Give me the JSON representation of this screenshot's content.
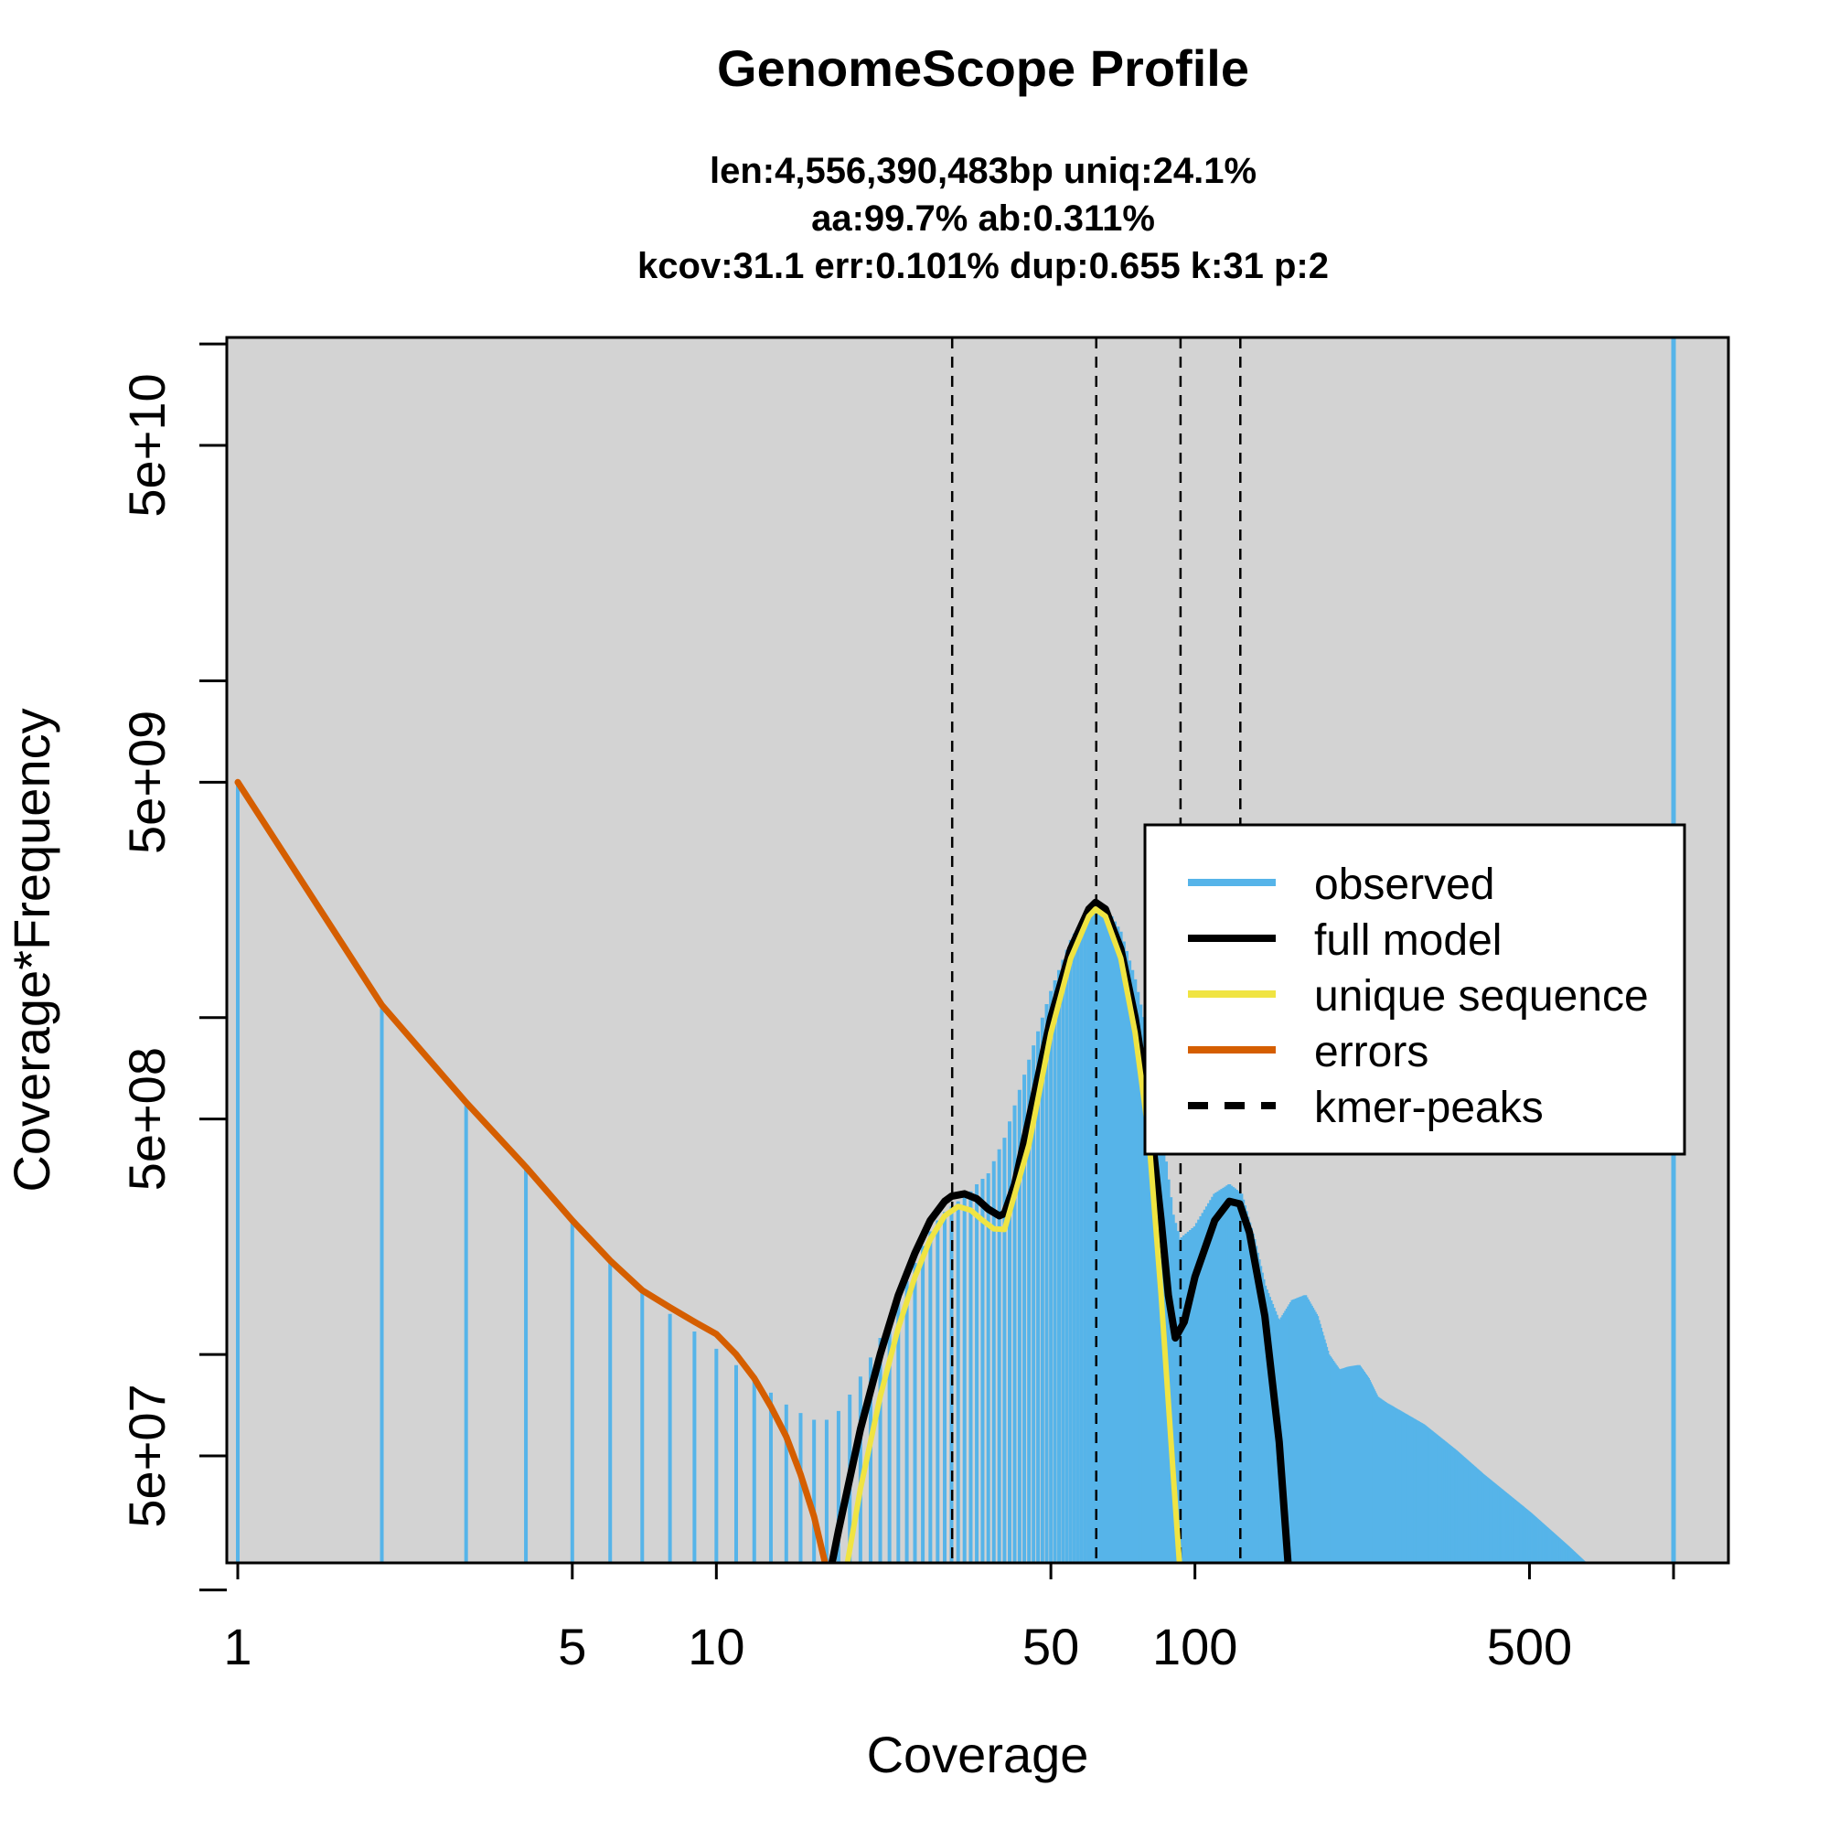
{
  "chart_data": {
    "type": "line",
    "title": "GenomeScope Profile",
    "subtitle_lines": [
      "len:4,556,390,483bp uniq:24.1%",
      "aa:99.7% ab:0.311%",
      "kcov:31.1 err:0.101%  dup:0.655  k:31 p:2"
    ],
    "xlabel": "Coverage",
    "ylabel": "Coverage*Frequency",
    "x_scale": "log",
    "y_scale": "log",
    "xlim": [
      0.8,
      1000
    ],
    "ylim": [
      8000000,
      200000000000
    ],
    "x_ticks": [
      {
        "value": 1,
        "label": "1"
      },
      {
        "value": 5,
        "label": "5"
      },
      {
        "value": 10,
        "label": "10"
      },
      {
        "value": 50,
        "label": "50"
      },
      {
        "value": 100,
        "label": "100"
      },
      {
        "value": 500,
        "label": "500"
      },
      {
        "value": 1000,
        "label": ""
      }
    ],
    "y_ticks": [
      {
        "value": 20000000,
        "label": ""
      },
      {
        "value": 50000000,
        "label": "5e+07"
      },
      {
        "value": 100000000,
        "label": ""
      },
      {
        "value": 500000000,
        "label": "5e+08"
      },
      {
        "value": 1000000000,
        "label": ""
      },
      {
        "value": 5000000000,
        "label": "5e+09"
      },
      {
        "value": 10000000000,
        "label": ""
      },
      {
        "value": 50000000000,
        "label": "5e+10"
      },
      {
        "value": 100000000000,
        "label": ""
      }
    ],
    "background": "#d3d3d3",
    "grid": false,
    "legend_position": "right",
    "legend": [
      {
        "label": "observed",
        "color": "#56b4e9",
        "style": "solid"
      },
      {
        "label": "full model",
        "color": "#000000",
        "style": "solid"
      },
      {
        "label": "unique sequence",
        "color": "#f0e442",
        "style": "solid"
      },
      {
        "label": "errors",
        "color": "#d55e00",
        "style": "solid"
      },
      {
        "label": "kmer-peaks",
        "color": "#000000",
        "style": "dashed"
      }
    ],
    "kmer_peaks": [
      31.1,
      62.2,
      93.3,
      124.4
    ],
    "series": [
      {
        "name": "observed",
        "kind": "histogram",
        "color": "#56b4e9",
        "points": [
          [
            1,
            5000000000
          ],
          [
            2,
            1090000000
          ],
          [
            3,
            560000000
          ],
          [
            4,
            360000000
          ],
          [
            5,
            250000000
          ],
          [
            6,
            190000000
          ],
          [
            7,
            155000000
          ],
          [
            8,
            132000000
          ],
          [
            9,
            117000000
          ],
          [
            10,
            104000000
          ],
          [
            11,
            93000000
          ],
          [
            12,
            84000000
          ],
          [
            13,
            77000000
          ],
          [
            14,
            71000000
          ],
          [
            15,
            67000000
          ],
          [
            16,
            64000000
          ],
          [
            17,
            64000000
          ],
          [
            18,
            68000000
          ],
          [
            19,
            76000000
          ],
          [
            20,
            86000000
          ],
          [
            21,
            98000000
          ],
          [
            22,
            112000000
          ],
          [
            23,
            127000000
          ],
          [
            24,
            145000000
          ],
          [
            25,
            165000000
          ],
          [
            26,
            187000000
          ],
          [
            27,
            210000000
          ],
          [
            28,
            232000000
          ],
          [
            29,
            250000000
          ],
          [
            30,
            265000000
          ],
          [
            31,
            275000000
          ],
          [
            32,
            285000000
          ],
          [
            33,
            295000000
          ],
          [
            34,
            305000000
          ],
          [
            35,
            320000000
          ],
          [
            37,
            345000000
          ],
          [
            40,
            440000000
          ],
          [
            45,
            750000000
          ],
          [
            50,
            1200000000
          ],
          [
            55,
            1700000000
          ],
          [
            60,
            2100000000
          ],
          [
            62,
            2200000000
          ],
          [
            65,
            2150000000
          ],
          [
            70,
            1800000000
          ],
          [
            75,
            1300000000
          ],
          [
            80,
            850000000
          ],
          [
            85,
            480000000
          ],
          [
            90,
            260000000
          ],
          [
            93,
            220000000
          ],
          [
            100,
            240000000
          ],
          [
            110,
            300000000
          ],
          [
            118,
            320000000
          ],
          [
            125,
            300000000
          ],
          [
            133,
            220000000
          ],
          [
            140,
            160000000
          ],
          [
            150,
            125000000
          ],
          [
            160,
            145000000
          ],
          [
            170,
            150000000
          ],
          [
            180,
            130000000
          ],
          [
            190,
            100000000
          ],
          [
            200,
            90000000
          ],
          [
            210,
            92000000
          ],
          [
            220,
            93000000
          ],
          [
            230,
            85000000
          ],
          [
            240,
            75000000
          ],
          [
            250,
            72000000
          ],
          [
            300,
            62000000
          ],
          [
            350,
            52000000
          ],
          [
            400,
            44000000
          ],
          [
            500,
            34000000
          ],
          [
            600,
            27000000
          ],
          [
            700,
            22000000
          ],
          [
            800,
            18000000
          ],
          [
            900,
            15000000
          ],
          [
            999,
            13000000
          ]
        ],
        "final_bin": [
          1000,
          150000000000
        ]
      },
      {
        "name": "full model",
        "kind": "line",
        "color": "#000000",
        "points": [
          [
            15.1,
            8000000
          ],
          [
            16,
            13000000
          ],
          [
            18,
            30000000
          ],
          [
            20,
            60000000
          ],
          [
            22,
            100000000
          ],
          [
            24,
            150000000
          ],
          [
            26,
            200000000
          ],
          [
            28,
            250000000
          ],
          [
            30,
            285000000
          ],
          [
            31,
            295000000
          ],
          [
            33,
            300000000
          ],
          [
            35,
            290000000
          ],
          [
            37,
            270000000
          ],
          [
            39,
            258000000
          ],
          [
            40,
            262000000
          ],
          [
            42,
            320000000
          ],
          [
            45,
            500000000
          ],
          [
            50,
            1000000000
          ],
          [
            55,
            1600000000
          ],
          [
            60,
            2100000000
          ],
          [
            62,
            2200000000
          ],
          [
            65,
            2100000000
          ],
          [
            70,
            1600000000
          ],
          [
            75,
            1000000000
          ],
          [
            80,
            550000000
          ],
          [
            85,
            250000000
          ],
          [
            88,
            150000000
          ],
          [
            91,
            112000000
          ],
          [
            95,
            125000000
          ],
          [
            100,
            170000000
          ],
          [
            110,
            250000000
          ],
          [
            118,
            285000000
          ],
          [
            124,
            280000000
          ],
          [
            130,
            230000000
          ],
          [
            140,
            130000000
          ],
          [
            150,
            55000000
          ],
          [
            158,
            20000000
          ],
          [
            165,
            8000000
          ]
        ]
      },
      {
        "name": "unique sequence",
        "kind": "line",
        "color": "#f0e442",
        "points": [
          [
            17,
            8000000
          ],
          [
            18,
            17000000
          ],
          [
            20,
            40000000
          ],
          [
            22,
            75000000
          ],
          [
            24,
            120000000
          ],
          [
            26,
            170000000
          ],
          [
            28,
            220000000
          ],
          [
            30,
            258000000
          ],
          [
            32,
            275000000
          ],
          [
            34,
            268000000
          ],
          [
            36,
            250000000
          ],
          [
            38,
            236000000
          ],
          [
            40,
            235000000
          ],
          [
            45,
            420000000
          ],
          [
            50,
            900000000
          ],
          [
            55,
            1500000000
          ],
          [
            60,
            2000000000
          ],
          [
            62,
            2100000000
          ],
          [
            65,
            2000000000
          ],
          [
            70,
            1500000000
          ],
          [
            75,
            900000000
          ],
          [
            80,
            450000000
          ],
          [
            85,
            150000000
          ],
          [
            90,
            45000000
          ],
          [
            95,
            15000000
          ],
          [
            100,
            8000000
          ]
        ]
      },
      {
        "name": "errors",
        "kind": "line",
        "color": "#d55e00",
        "points": [
          [
            1,
            5000000000
          ],
          [
            2,
            1090000000
          ],
          [
            3,
            560000000
          ],
          [
            4,
            360000000
          ],
          [
            5,
            250000000
          ],
          [
            6,
            190000000
          ],
          [
            7,
            155000000
          ],
          [
            8,
            138000000
          ],
          [
            9,
            125000000
          ],
          [
            10,
            115000000
          ],
          [
            11,
            100000000
          ],
          [
            12,
            85000000
          ],
          [
            13,
            70000000
          ],
          [
            14,
            57000000
          ],
          [
            15,
            44000000
          ],
          [
            16,
            33000000
          ],
          [
            17,
            23000000
          ],
          [
            18,
            14000000
          ],
          [
            19,
            9000000
          ],
          [
            19.5,
            8000000
          ]
        ]
      }
    ]
  }
}
